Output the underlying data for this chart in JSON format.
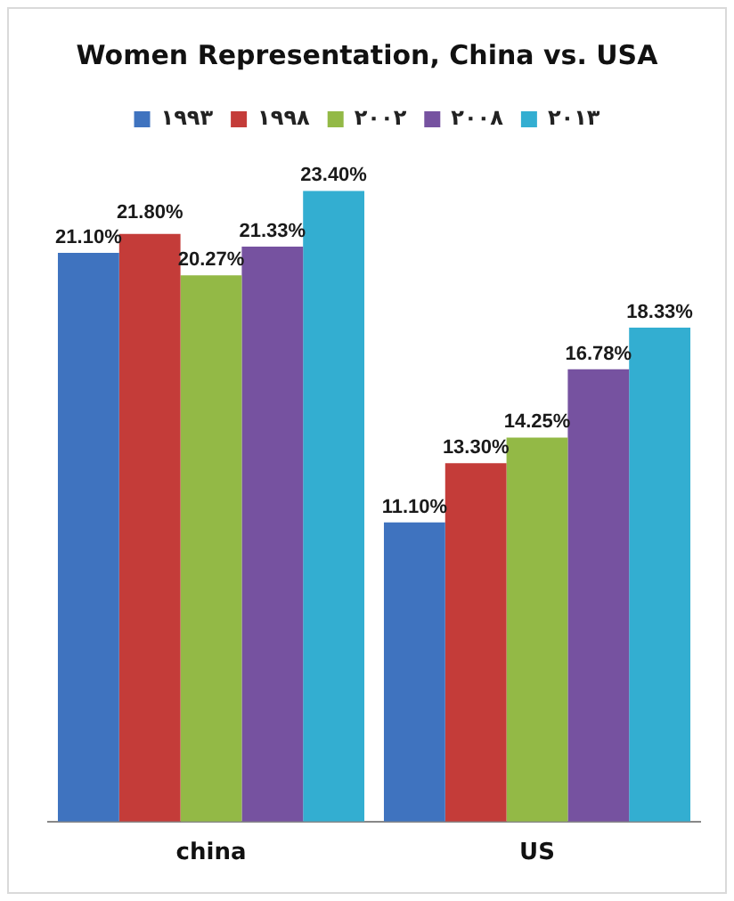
{
  "chart_data": {
    "type": "bar",
    "title": "Women Representation, China vs. USA",
    "categories": [
      "china",
      "US"
    ],
    "grid": false,
    "legend": "top",
    "tick_labels": "x",
    "series": [
      {
        "name": "١٩٩٣",
        "color": "#3f73bf",
        "values": [
          21.1,
          11.1
        ],
        "value_labels": [
          "21.10%",
          "11.10%"
        ]
      },
      {
        "name": "١٩٩٨",
        "color": "#c43c39",
        "values": [
          21.8,
          13.3
        ],
        "value_labels": [
          "21.80%",
          "13.30%"
        ]
      },
      {
        "name": "٢٠٠٢",
        "color": "#93b946",
        "values": [
          20.27,
          14.25
        ],
        "value_labels": [
          "20.27%",
          "14.25%"
        ]
      },
      {
        "name": "٢٠٠٨",
        "color": "#7652a0",
        "values": [
          21.33,
          16.78
        ],
        "value_labels": [
          "21.33%",
          "16.78%"
        ]
      },
      {
        "name": "٢٠١٣",
        "color": "#33aed1",
        "values": [
          23.4,
          18.33
        ],
        "value_labels": [
          "23.40%",
          "18.33%"
        ]
      }
    ]
  }
}
